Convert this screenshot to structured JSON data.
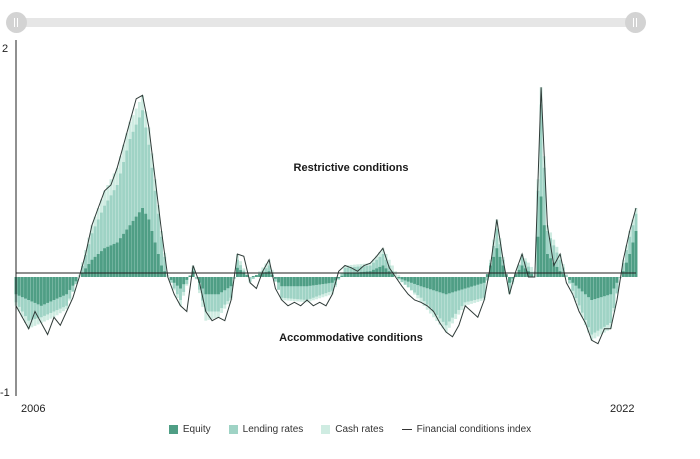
{
  "colors": {
    "equity": "#4f9e85",
    "lending": "#9fd3c5",
    "cash": "#cfece2",
    "index": "#2f3b38",
    "axis": "#222222"
  },
  "annotations": {
    "restrictive": "Restrictive conditions",
    "accommodative": "Accommodative conditions"
  },
  "chart_data": {
    "type": "bar",
    "stacked": true,
    "x_start_label": "2006",
    "x_end_label": "2022",
    "ylim": [
      -1,
      2
    ],
    "y_ticks": [
      "2",
      "-1"
    ],
    "legend": [
      "Equity",
      "Lending rates",
      "Cash rates",
      "Financial conditions index"
    ],
    "legend_position": "bottom",
    "grid": false,
    "index_points": [
      [
        0,
        -0.25
      ],
      [
        4,
        -0.35
      ],
      [
        8,
        -0.45
      ],
      [
        12,
        -0.3
      ],
      [
        16,
        -0.4
      ],
      [
        20,
        -0.5
      ],
      [
        24,
        -0.35
      ],
      [
        28,
        -0.42
      ],
      [
        32,
        -0.3
      ],
      [
        36,
        -0.18
      ],
      [
        40,
        0.0
      ],
      [
        44,
        0.2
      ],
      [
        48,
        0.45
      ],
      [
        52,
        0.6
      ],
      [
        56,
        0.75
      ],
      [
        60,
        0.8
      ],
      [
        64,
        0.95
      ],
      [
        68,
        1.15
      ],
      [
        72,
        1.35
      ],
      [
        76,
        1.55
      ],
      [
        80,
        1.58
      ],
      [
        84,
        1.3
      ],
      [
        88,
        0.85
      ],
      [
        92,
        0.4
      ],
      [
        96,
        0.0
      ],
      [
        100,
        -0.15
      ],
      [
        104,
        -0.25
      ],
      [
        108,
        -0.3
      ],
      [
        112,
        0.1
      ],
      [
        116,
        -0.05
      ],
      [
        120,
        -0.3
      ],
      [
        124,
        -0.38
      ],
      [
        128,
        -0.35
      ],
      [
        132,
        -0.38
      ],
      [
        136,
        -0.2
      ],
      [
        140,
        0.2
      ],
      [
        144,
        0.18
      ],
      [
        148,
        -0.05
      ],
      [
        152,
        -0.1
      ],
      [
        156,
        0.05
      ],
      [
        160,
        0.15
      ],
      [
        164,
        -0.1
      ],
      [
        168,
        -0.2
      ],
      [
        172,
        -0.25
      ],
      [
        176,
        -0.22
      ],
      [
        180,
        -0.25
      ],
      [
        184,
        -0.2
      ],
      [
        188,
        -0.25
      ],
      [
        192,
        -0.22
      ],
      [
        196,
        -0.25
      ],
      [
        200,
        -0.15
      ],
      [
        204,
        0.05
      ],
      [
        208,
        0.1
      ],
      [
        212,
        0.08
      ],
      [
        216,
        0.05
      ],
      [
        220,
        0.1
      ],
      [
        224,
        0.12
      ],
      [
        228,
        0.18
      ],
      [
        232,
        0.25
      ],
      [
        236,
        0.08
      ],
      [
        240,
        0.0
      ],
      [
        244,
        -0.08
      ],
      [
        248,
        -0.15
      ],
      [
        252,
        -0.2
      ],
      [
        256,
        -0.22
      ],
      [
        260,
        -0.25
      ],
      [
        264,
        -0.3
      ],
      [
        268,
        -0.4
      ],
      [
        272,
        -0.48
      ],
      [
        276,
        -0.52
      ],
      [
        280,
        -0.42
      ],
      [
        284,
        -0.25
      ],
      [
        288,
        -0.3
      ],
      [
        292,
        -0.35
      ],
      [
        296,
        -0.2
      ],
      [
        300,
        0.1
      ],
      [
        304,
        0.5
      ],
      [
        308,
        0.15
      ],
      [
        312,
        -0.15
      ],
      [
        316,
        0.05
      ],
      [
        320,
        0.2
      ],
      [
        324,
        0.0
      ],
      [
        328,
        0.0
      ],
      [
        332,
        1.65
      ],
      [
        336,
        0.45
      ],
      [
        340,
        0.1
      ],
      [
        344,
        0.2
      ],
      [
        348,
        -0.05
      ],
      [
        352,
        -0.15
      ],
      [
        356,
        -0.3
      ],
      [
        360,
        -0.4
      ],
      [
        364,
        -0.55
      ],
      [
        368,
        -0.58
      ],
      [
        372,
        -0.45
      ],
      [
        376,
        -0.45
      ],
      [
        380,
        -0.2
      ],
      [
        384,
        0.15
      ],
      [
        388,
        0.4
      ],
      [
        392,
        0.6
      ]
    ],
    "equity_points": [
      [
        0,
        -0.15
      ],
      [
        8,
        -0.2
      ],
      [
        16,
        -0.25
      ],
      [
        24,
        -0.2
      ],
      [
        32,
        -0.15
      ],
      [
        40,
        0.0
      ],
      [
        48,
        0.15
      ],
      [
        56,
        0.25
      ],
      [
        64,
        0.3
      ],
      [
        72,
        0.45
      ],
      [
        80,
        0.6
      ],
      [
        84,
        0.5
      ],
      [
        88,
        0.3
      ],
      [
        92,
        0.1
      ],
      [
        96,
        0.0
      ],
      [
        104,
        -0.1
      ],
      [
        112,
        0.05
      ],
      [
        120,
        -0.15
      ],
      [
        128,
        -0.15
      ],
      [
        136,
        -0.08
      ],
      [
        140,
        0.08
      ],
      [
        148,
        0.0
      ],
      [
        160,
        0.05
      ],
      [
        168,
        -0.08
      ],
      [
        184,
        -0.08
      ],
      [
        200,
        -0.05
      ],
      [
        208,
        0.03
      ],
      [
        224,
        0.05
      ],
      [
        232,
        0.1
      ],
      [
        240,
        0.0
      ],
      [
        256,
        -0.08
      ],
      [
        272,
        -0.15
      ],
      [
        284,
        -0.1
      ],
      [
        296,
        -0.05
      ],
      [
        304,
        0.25
      ],
      [
        312,
        -0.05
      ],
      [
        320,
        0.1
      ],
      [
        328,
        0.0
      ],
      [
        332,
        0.7
      ],
      [
        336,
        0.2
      ],
      [
        344,
        0.05
      ],
      [
        352,
        -0.05
      ],
      [
        364,
        -0.2
      ],
      [
        376,
        -0.15
      ],
      [
        384,
        0.05
      ],
      [
        388,
        0.2
      ],
      [
        392,
        0.4
      ]
    ],
    "lending_points": [
      [
        0,
        -0.22
      ],
      [
        8,
        -0.38
      ],
      [
        16,
        -0.35
      ],
      [
        24,
        -0.3
      ],
      [
        32,
        -0.25
      ],
      [
        40,
        0.0
      ],
      [
        48,
        0.38
      ],
      [
        56,
        0.62
      ],
      [
        64,
        0.8
      ],
      [
        72,
        1.2
      ],
      [
        80,
        1.45
      ],
      [
        84,
        1.15
      ],
      [
        88,
        0.75
      ],
      [
        92,
        0.35
      ],
      [
        96,
        0.0
      ],
      [
        104,
        -0.2
      ],
      [
        112,
        0.08
      ],
      [
        120,
        -0.3
      ],
      [
        128,
        -0.3
      ],
      [
        136,
        -0.18
      ],
      [
        140,
        0.15
      ],
      [
        148,
        -0.04
      ],
      [
        160,
        0.1
      ],
      [
        168,
        -0.18
      ],
      [
        184,
        -0.2
      ],
      [
        200,
        -0.12
      ],
      [
        208,
        0.08
      ],
      [
        224,
        0.1
      ],
      [
        232,
        0.2
      ],
      [
        240,
        0.0
      ],
      [
        256,
        -0.18
      ],
      [
        272,
        -0.42
      ],
      [
        284,
        -0.22
      ],
      [
        296,
        -0.18
      ],
      [
        304,
        0.42
      ],
      [
        312,
        -0.12
      ],
      [
        320,
        0.18
      ],
      [
        328,
        0.0
      ],
      [
        332,
        1.5
      ],
      [
        336,
        0.4
      ],
      [
        344,
        0.15
      ],
      [
        352,
        -0.12
      ],
      [
        364,
        -0.5
      ],
      [
        376,
        -0.4
      ],
      [
        384,
        0.12
      ],
      [
        388,
        0.35
      ],
      [
        392,
        0.55
      ]
    ],
    "cash_points": [
      [
        0,
        -0.25
      ],
      [
        8,
        -0.45
      ],
      [
        16,
        -0.4
      ],
      [
        24,
        -0.35
      ],
      [
        32,
        -0.28
      ],
      [
        40,
        0.02
      ],
      [
        48,
        0.45
      ],
      [
        56,
        0.75
      ],
      [
        64,
        0.95
      ],
      [
        72,
        1.35
      ],
      [
        80,
        1.58
      ],
      [
        84,
        1.3
      ],
      [
        88,
        0.85
      ],
      [
        92,
        0.4
      ],
      [
        96,
        0.02
      ],
      [
        104,
        -0.25
      ],
      [
        112,
        0.1
      ],
      [
        120,
        -0.38
      ],
      [
        128,
        -0.35
      ],
      [
        136,
        -0.2
      ],
      [
        140,
        0.2
      ],
      [
        148,
        -0.05
      ],
      [
        160,
        0.15
      ],
      [
        168,
        -0.2
      ],
      [
        184,
        -0.22
      ],
      [
        200,
        -0.15
      ],
      [
        208,
        0.1
      ],
      [
        224,
        0.12
      ],
      [
        232,
        0.25
      ],
      [
        240,
        0.05
      ],
      [
        256,
        -0.22
      ],
      [
        272,
        -0.48
      ],
      [
        284,
        -0.25
      ],
      [
        296,
        -0.2
      ],
      [
        304,
        0.5
      ],
      [
        312,
        -0.15
      ],
      [
        320,
        0.2
      ],
      [
        328,
        0.05
      ],
      [
        332,
        1.65
      ],
      [
        336,
        0.45
      ],
      [
        344,
        0.2
      ],
      [
        352,
        -0.15
      ],
      [
        364,
        -0.55
      ],
      [
        376,
        -0.45
      ],
      [
        384,
        0.15
      ],
      [
        388,
        0.4
      ],
      [
        392,
        0.6
      ]
    ]
  }
}
